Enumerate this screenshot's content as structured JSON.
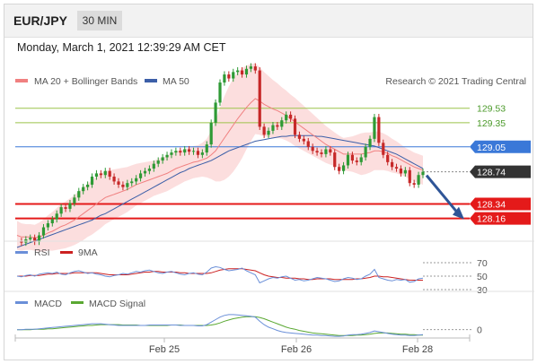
{
  "header": {
    "symbol": "EUR/JPY",
    "timeframe": "30 MIN",
    "datetime": "Monday, March 1, 2021 12:39:29 AM CET"
  },
  "legend": {
    "ma20": "MA 20 + Bollinger Bands",
    "ma50": "MA 50",
    "rsi": "RSI",
    "nine_ma": "9MA",
    "macd": "MACD",
    "macd_signal": "MACD Signal",
    "copyright": "Research © 2021 Trading Central"
  },
  "colors": {
    "ma20": "#f08080",
    "bollinger_fill": "#fbd6d6",
    "ma50": "#3c5fa8",
    "candle_up": "#2e9a35",
    "candle_down": "#c62828",
    "resistance": "#9bc34a",
    "pivot": "#3a78d8",
    "support": "#e41a1a",
    "current": "#333333",
    "rsi": "#6a8fd8",
    "rsi_ma": "#cc2222",
    "macd": "#6a8fd8",
    "macd_signal": "#5aa832",
    "arrow": "#2f5597"
  },
  "chart_data": [
    {
      "type": "line",
      "panel": "price",
      "y_range": [
        127.9,
        129.75
      ],
      "x_ticks": [
        "Feb 25",
        "Feb 26",
        "Feb 28"
      ],
      "levels": [
        {
          "value": 129.53,
          "label": "129.53",
          "kind": "resistance"
        },
        {
          "value": 129.35,
          "label": "129.35",
          "kind": "resistance"
        },
        {
          "value": 129.05,
          "label": "129.05",
          "kind": "pivot"
        },
        {
          "value": 128.74,
          "label": "128.74",
          "kind": "current"
        },
        {
          "value": 128.34,
          "label": "128.34",
          "kind": "support"
        },
        {
          "value": 128.16,
          "label": "128.16",
          "kind": "support"
        }
      ],
      "close": [
        127.88,
        127.86,
        127.9,
        127.92,
        127.87,
        127.95,
        128.05,
        128.1,
        128.15,
        128.22,
        128.3,
        128.28,
        128.35,
        128.42,
        128.5,
        128.55,
        128.58,
        128.68,
        128.72,
        128.7,
        128.75,
        128.68,
        128.62,
        128.58,
        128.55,
        128.6,
        128.62,
        128.66,
        128.72,
        128.75,
        128.78,
        128.84,
        128.88,
        128.92,
        128.95,
        128.98,
        129.0,
        128.98,
        129.02,
        128.99,
        129.0,
        128.95,
        128.98,
        129.08,
        129.35,
        129.6,
        129.85,
        129.95,
        129.9,
        129.98,
        130.0,
        129.95,
        130.02,
        130.05,
        130.0,
        129.3,
        129.2,
        129.25,
        129.32,
        129.3,
        129.38,
        129.45,
        129.4,
        129.2,
        129.15,
        129.12,
        129.05,
        129.0,
        128.98,
        128.96,
        129.02,
        128.98,
        128.8,
        128.75,
        128.82,
        128.95,
        128.88,
        128.86,
        128.92,
        129.05,
        129.15,
        129.42,
        129.1,
        128.95,
        128.86,
        128.8,
        128.78,
        128.72,
        128.76,
        128.6,
        128.58,
        128.7,
        128.74
      ],
      "ma20": [
        127.95,
        127.93,
        127.93,
        127.93,
        127.92,
        127.93,
        127.95,
        127.98,
        128.0,
        128.03,
        128.06,
        128.08,
        128.11,
        128.14,
        128.18,
        128.22,
        128.26,
        128.3,
        128.34,
        128.38,
        128.42,
        128.44,
        128.46,
        128.48,
        128.5,
        128.52,
        128.55,
        128.58,
        128.6,
        128.62,
        128.64,
        128.66,
        128.68,
        128.7,
        128.72,
        128.75,
        128.78,
        128.8,
        128.82,
        128.84,
        128.86,
        128.87,
        128.89,
        128.91,
        128.95,
        129.0,
        129.08,
        129.16,
        129.24,
        129.32,
        129.4,
        129.47,
        129.54,
        129.6,
        129.65,
        129.62,
        129.58,
        129.55,
        129.52,
        129.5,
        129.47,
        129.44,
        129.4,
        129.36,
        129.32,
        129.28,
        129.24,
        129.2,
        129.16,
        129.12,
        129.08,
        129.05,
        129.02,
        128.99,
        128.96,
        128.96,
        128.96,
        128.96,
        128.96,
        128.97,
        128.98,
        129.0,
        129.0,
        128.99,
        128.97,
        128.94,
        128.92,
        128.89,
        128.86,
        128.83,
        128.8,
        128.78,
        128.76
      ],
      "ma50": [
        127.8,
        127.82,
        127.84,
        127.86,
        127.88,
        127.9,
        127.92,
        127.94,
        127.96,
        127.98,
        128.0,
        128.02,
        128.04,
        128.06,
        128.08,
        128.1,
        128.12,
        128.14,
        128.17,
        128.2,
        128.22,
        128.25,
        128.28,
        128.31,
        128.34,
        128.37,
        128.4,
        128.43,
        128.46,
        128.49,
        128.52,
        128.55,
        128.58,
        128.61,
        128.64,
        128.67,
        128.7,
        128.73,
        128.75,
        128.78,
        128.8,
        128.82,
        128.84,
        128.86,
        128.88,
        128.91,
        128.94,
        128.97,
        129.0,
        129.02,
        129.04,
        129.06,
        129.08,
        129.1,
        129.12,
        129.13,
        129.14,
        129.15,
        129.16,
        129.17,
        129.18,
        129.18,
        129.19,
        129.19,
        129.19,
        129.19,
        129.19,
        129.19,
        129.18,
        129.18,
        129.17,
        129.16,
        129.15,
        129.14,
        129.13,
        129.12,
        129.11,
        129.1,
        129.09,
        129.08,
        129.07,
        129.06,
        129.04,
        129.02,
        129.0,
        128.98,
        128.96,
        128.93,
        128.9,
        128.87,
        128.84,
        128.81,
        128.78
      ],
      "bb_width": [
        0.18,
        0.17,
        0.16,
        0.16,
        0.16,
        0.18,
        0.2,
        0.22,
        0.24,
        0.26,
        0.28,
        0.29,
        0.3,
        0.31,
        0.32,
        0.33,
        0.33,
        0.34,
        0.34,
        0.34,
        0.33,
        0.32,
        0.31,
        0.3,
        0.29,
        0.28,
        0.27,
        0.26,
        0.25,
        0.24,
        0.23,
        0.22,
        0.22,
        0.22,
        0.22,
        0.22,
        0.22,
        0.21,
        0.2,
        0.2,
        0.2,
        0.2,
        0.21,
        0.24,
        0.3,
        0.38,
        0.46,
        0.52,
        0.56,
        0.58,
        0.58,
        0.56,
        0.52,
        0.48,
        0.44,
        0.42,
        0.4,
        0.38,
        0.36,
        0.34,
        0.32,
        0.31,
        0.3,
        0.3,
        0.29,
        0.28,
        0.27,
        0.26,
        0.25,
        0.24,
        0.23,
        0.22,
        0.21,
        0.2,
        0.2,
        0.21,
        0.22,
        0.24,
        0.26,
        0.26,
        0.25,
        0.24,
        0.24,
        0.23,
        0.22,
        0.21,
        0.2,
        0.19,
        0.18,
        0.18,
        0.18,
        0.18,
        0.18
      ]
    },
    {
      "type": "line",
      "panel": "rsi",
      "y_ticks": [
        "70",
        "50",
        "30"
      ],
      "rsi": [
        50,
        49,
        51,
        52,
        50,
        53,
        54,
        55,
        54,
        56,
        53,
        52,
        55,
        57,
        58,
        56,
        54,
        55,
        53,
        52,
        50,
        49,
        51,
        52,
        54,
        53,
        55,
        57,
        56,
        58,
        59,
        57,
        55,
        54,
        56,
        57,
        55,
        53,
        52,
        54,
        55,
        53,
        52,
        56,
        62,
        64,
        63,
        60,
        58,
        59,
        60,
        62,
        58,
        55,
        52,
        40,
        43,
        46,
        48,
        47,
        49,
        50,
        47,
        44,
        45,
        43,
        44,
        46,
        48,
        47,
        46,
        44,
        42,
        43,
        46,
        48,
        47,
        45,
        46,
        50,
        53,
        60,
        48,
        46,
        44,
        43,
        45,
        44,
        45,
        41,
        42,
        46,
        47
      ],
      "rsi_ma": [
        50,
        50,
        50,
        51,
        51,
        51,
        52,
        53,
        53,
        54,
        54,
        54,
        54,
        55,
        55,
        55,
        55,
        55,
        55,
        54,
        53,
        52,
        52,
        52,
        52,
        52,
        53,
        54,
        55,
        56,
        56,
        57,
        57,
        56,
        56,
        56,
        56,
        55,
        55,
        54,
        54,
        54,
        54,
        54,
        55,
        57,
        59,
        60,
        61,
        61,
        61,
        61,
        60,
        59,
        58,
        55,
        52,
        50,
        49,
        48,
        48,
        47,
        47,
        47,
        46,
        46,
        45,
        45,
        46,
        46,
        46,
        46,
        45,
        45,
        45,
        45,
        45,
        46,
        46,
        47,
        48,
        50,
        50,
        49,
        49,
        48,
        47,
        46,
        45,
        44,
        44,
        44,
        44
      ]
    },
    {
      "type": "line",
      "panel": "macd",
      "y_ticks": [
        "0"
      ],
      "macd": [
        0.0,
        0.0,
        0.01,
        0.01,
        0.01,
        0.02,
        0.03,
        0.04,
        0.05,
        0.06,
        0.07,
        0.08,
        0.09,
        0.1,
        0.11,
        0.12,
        0.13,
        0.14,
        0.14,
        0.14,
        0.13,
        0.12,
        0.11,
        0.1,
        0.1,
        0.1,
        0.1,
        0.1,
        0.1,
        0.1,
        0.11,
        0.11,
        0.11,
        0.11,
        0.11,
        0.11,
        0.11,
        0.1,
        0.1,
        0.1,
        0.1,
        0.09,
        0.09,
        0.12,
        0.18,
        0.24,
        0.3,
        0.34,
        0.36,
        0.36,
        0.35,
        0.34,
        0.33,
        0.32,
        0.3,
        0.2,
        0.12,
        0.06,
        0.02,
        -0.02,
        -0.05,
        -0.07,
        -0.08,
        -0.09,
        -0.1,
        -0.11,
        -0.12,
        -0.13,
        -0.13,
        -0.14,
        -0.14,
        -0.15,
        -0.16,
        -0.16,
        -0.15,
        -0.13,
        -0.12,
        -0.12,
        -0.11,
        -0.09,
        -0.07,
        -0.03,
        -0.05,
        -0.07,
        -0.09,
        -0.11,
        -0.12,
        -0.13,
        -0.13,
        -0.14,
        -0.14,
        -0.13,
        -0.12
      ],
      "macd_signal": [
        0.0,
        0.0,
        0.0,
        0.0,
        0.01,
        0.01,
        0.01,
        0.02,
        0.02,
        0.03,
        0.04,
        0.05,
        0.06,
        0.07,
        0.08,
        0.09,
        0.1,
        0.1,
        0.11,
        0.12,
        0.12,
        0.12,
        0.12,
        0.12,
        0.11,
        0.11,
        0.11,
        0.11,
        0.1,
        0.1,
        0.1,
        0.1,
        0.1,
        0.1,
        0.1,
        0.11,
        0.11,
        0.11,
        0.1,
        0.1,
        0.1,
        0.1,
        0.1,
        0.1,
        0.11,
        0.13,
        0.16,
        0.2,
        0.23,
        0.26,
        0.28,
        0.3,
        0.31,
        0.31,
        0.31,
        0.29,
        0.26,
        0.22,
        0.18,
        0.14,
        0.1,
        0.06,
        0.03,
        0.01,
        -0.02,
        -0.04,
        -0.06,
        -0.08,
        -0.09,
        -0.1,
        -0.11,
        -0.12,
        -0.13,
        -0.14,
        -0.14,
        -0.14,
        -0.14,
        -0.13,
        -0.13,
        -0.12,
        -0.11,
        -0.09,
        -0.08,
        -0.08,
        -0.08,
        -0.09,
        -0.1,
        -0.11,
        -0.11,
        -0.12,
        -0.12,
        -0.13,
        -0.13
      ]
    }
  ]
}
